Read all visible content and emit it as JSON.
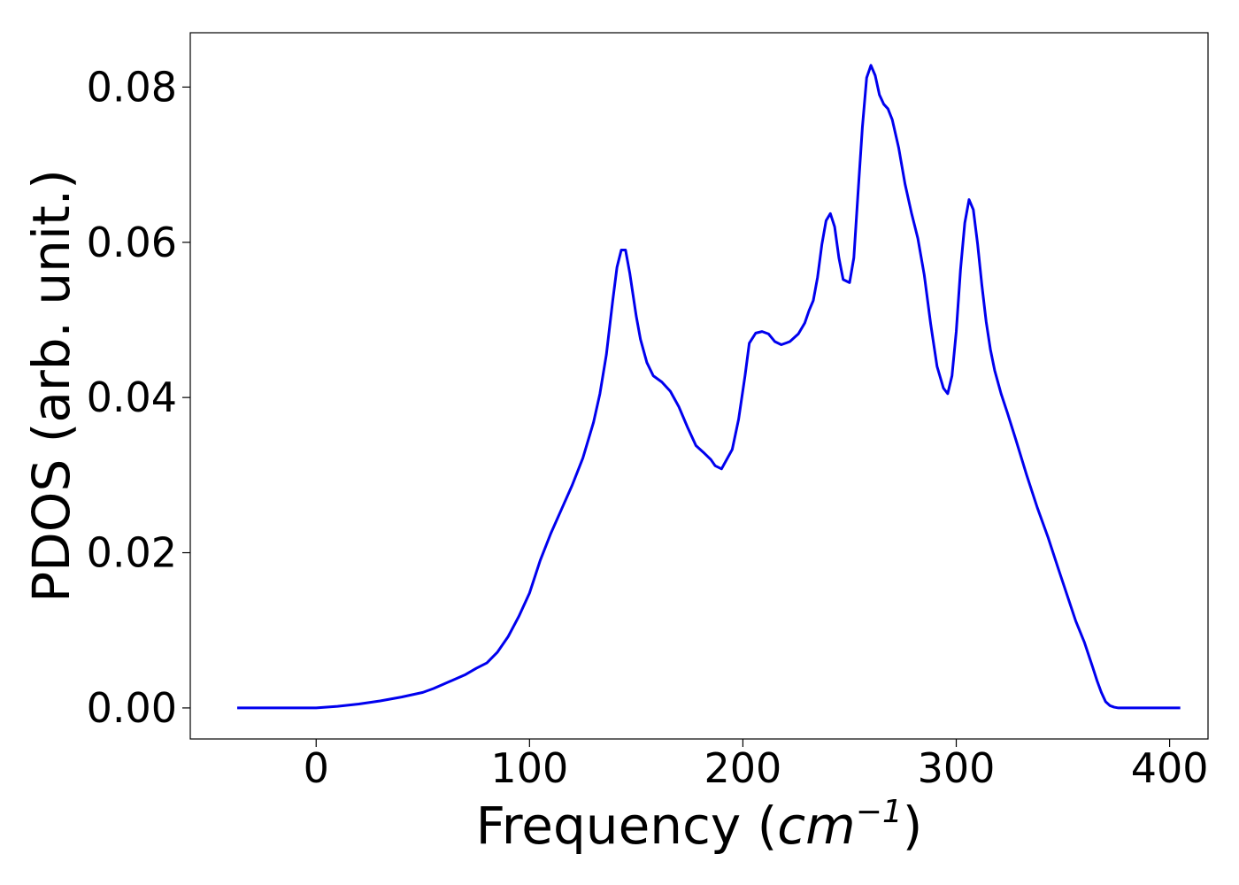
{
  "chart_data": {
    "type": "line",
    "xlabel_prefix": "Frequency (",
    "xlabel_unit_base": "cm",
    "xlabel_unit_exp": "−1",
    "xlabel_suffix": ")",
    "ylabel": "PDOS (arb. unit.)",
    "xlim": [
      -59,
      418
    ],
    "ylim": [
      -0.004,
      0.087
    ],
    "xticks": [
      0,
      100,
      200,
      300,
      400
    ],
    "xtick_labels": [
      "0",
      "100",
      "200",
      "300",
      "400"
    ],
    "yticks": [
      0,
      0.02,
      0.04,
      0.06,
      0.08
    ],
    "ytick_labels": [
      "0.00",
      "0.02",
      "0.04",
      "0.06",
      "0.08"
    ],
    "grid": false,
    "series": [
      {
        "color": "#0000ee",
        "x": [
          -37,
          -20,
          0,
          10,
          20,
          30,
          40,
          50,
          55,
          60,
          70,
          75,
          80,
          85,
          90,
          95,
          100,
          105,
          110,
          115,
          120,
          125,
          130,
          133,
          136,
          139,
          141,
          143,
          145,
          147,
          150,
          152,
          155,
          158,
          162,
          166,
          170,
          174,
          178,
          182,
          185,
          187,
          190,
          195,
          198,
          201,
          203,
          206,
          209,
          212,
          215,
          218,
          222,
          226,
          229,
          231,
          233,
          235,
          237,
          239,
          241,
          243,
          245,
          247,
          250,
          252,
          254,
          256,
          258,
          260,
          262,
          264,
          266,
          268,
          270,
          273,
          276,
          279,
          282,
          285,
          288,
          291,
          294,
          296,
          298,
          300,
          302,
          304,
          306,
          308,
          310,
          312,
          314,
          316,
          318,
          321,
          324,
          328,
          333,
          338,
          343,
          348,
          352,
          356,
          360,
          364,
          366,
          368,
          370,
          372,
          374,
          376,
          380,
          390,
          405
        ],
        "y": [
          0,
          0,
          0,
          0.0002,
          0.0005,
          0.0009,
          0.0014,
          0.002,
          0.0025,
          0.0031,
          0.0043,
          0.0051,
          0.0058,
          0.0072,
          0.0092,
          0.0118,
          0.0148,
          0.019,
          0.0225,
          0.0256,
          0.0287,
          0.0322,
          0.0368,
          0.0405,
          0.0455,
          0.0525,
          0.0568,
          0.059,
          0.059,
          0.056,
          0.0505,
          0.0475,
          0.0445,
          0.0428,
          0.042,
          0.0408,
          0.0388,
          0.0362,
          0.0338,
          0.0328,
          0.032,
          0.0312,
          0.0308,
          0.0333,
          0.0372,
          0.0428,
          0.047,
          0.0483,
          0.0485,
          0.0482,
          0.0472,
          0.0468,
          0.0472,
          0.0482,
          0.0496,
          0.0512,
          0.0525,
          0.0555,
          0.0597,
          0.0628,
          0.0637,
          0.062,
          0.058,
          0.0552,
          0.0548,
          0.058,
          0.0665,
          0.0748,
          0.0812,
          0.0828,
          0.0815,
          0.079,
          0.0778,
          0.0772,
          0.0758,
          0.0722,
          0.0675,
          0.0638,
          0.0605,
          0.0558,
          0.0495,
          0.044,
          0.0412,
          0.0405,
          0.0428,
          0.0485,
          0.0565,
          0.0625,
          0.0655,
          0.0642,
          0.0598,
          0.0545,
          0.0498,
          0.0462,
          0.0435,
          0.0405,
          0.038,
          0.0345,
          0.03,
          0.0258,
          0.022,
          0.0178,
          0.0145,
          0.0112,
          0.0085,
          0.0052,
          0.0035,
          0.002,
          0.0008,
          0.0003,
          0.0001,
          0,
          0,
          0,
          0
        ]
      }
    ]
  }
}
